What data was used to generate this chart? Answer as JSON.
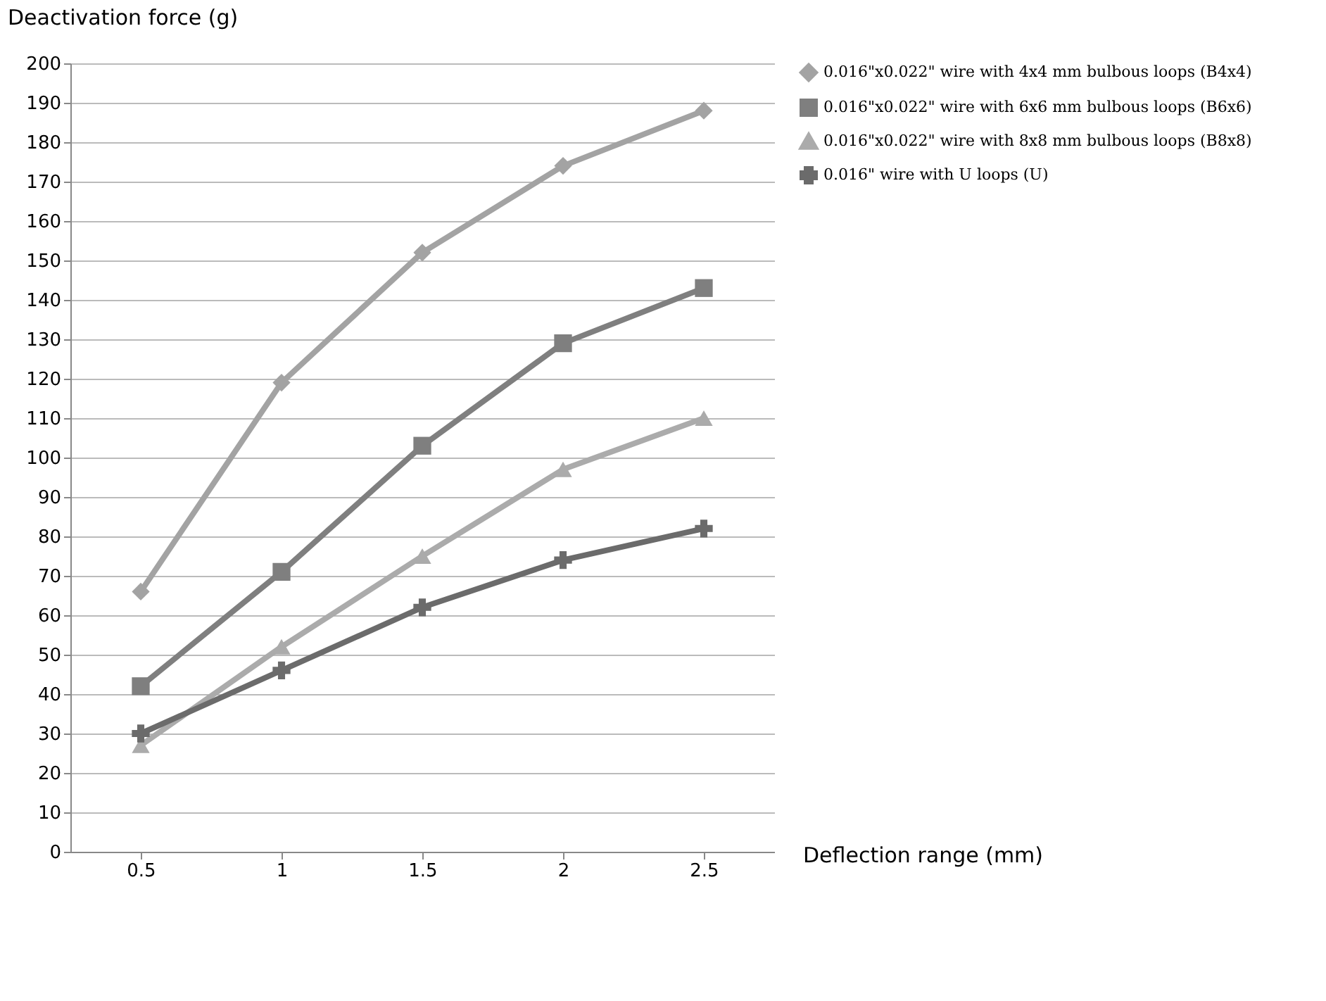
{
  "chart_data": {
    "type": "line",
    "xlabel": "Deflection range (mm)",
    "ylabel": "Deactivation force (g)",
    "categories": [
      "0.5",
      "1",
      "1.5",
      "2",
      "2.5"
    ],
    "series": [
      {
        "name": "0.016\"x0.022\" wire with 4x4 mm bulbous loops (B4x4)",
        "color": "#a3a3a3",
        "marker": "diamond",
        "values": [
          66,
          119,
          152,
          174,
          188
        ]
      },
      {
        "name": "0.016\"x0.022\" wire with 6x6 mm bulbous loops (B6x6)",
        "color": "#7f7f7f",
        "marker": "square",
        "values": [
          42,
          71,
          103,
          129,
          143
        ]
      },
      {
        "name": "0.016\"x0.022\" wire with 8x8 mm bulbous loops (B8x8)",
        "color": "#ababab",
        "marker": "triangle",
        "values": [
          27,
          52,
          75,
          97,
          110
        ]
      },
      {
        "name": "0.016\" wire with U loops (U)",
        "color": "#6b6b6b",
        "marker": "cross",
        "values": [
          30,
          46,
          62,
          74,
          82
        ]
      }
    ],
    "ylim": [
      0,
      200
    ],
    "yticks": [
      0,
      10,
      20,
      30,
      40,
      50,
      60,
      70,
      80,
      90,
      100,
      110,
      120,
      130,
      140,
      150,
      160,
      170,
      180,
      190,
      200
    ],
    "grid": "y",
    "legend": "right"
  }
}
